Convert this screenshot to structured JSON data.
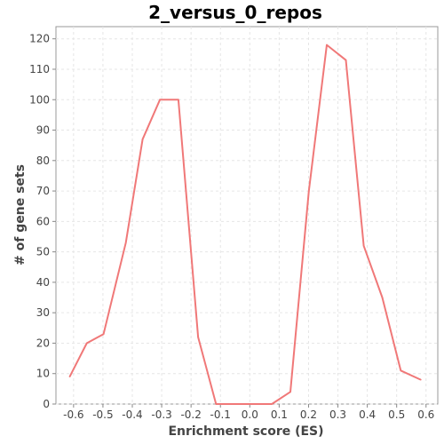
{
  "chart_data": {
    "type": "line",
    "title": "2_versus_0_repos",
    "xlabel": "Enrichment score (ES)",
    "ylabel": "# of gene sets",
    "xlim": [
      -0.66,
      0.64
    ],
    "ylim": [
      0,
      124
    ],
    "xticks": [
      "-0.6",
      "-0.5",
      "-0.4",
      "-0.3",
      "-0.2",
      "-0.1",
      "0.0",
      "0.1",
      "0.2",
      "0.3",
      "0.4",
      "0.5",
      "0.6"
    ],
    "yticks": [
      "0",
      "10",
      "20",
      "30",
      "40",
      "50",
      "60",
      "70",
      "80",
      "90",
      "100",
      "110",
      "120"
    ],
    "grid": true,
    "legend": "none",
    "series": [
      {
        "color": "#f07878",
        "x": [
          -0.613,
          -0.555,
          -0.498,
          -0.422,
          -0.365,
          -0.306,
          -0.243,
          -0.176,
          -0.115,
          -0.054,
          0.006,
          0.075,
          0.138,
          0.201,
          0.262,
          0.327,
          0.388,
          0.451,
          0.514,
          0.582
        ],
        "y": [
          9,
          20,
          23,
          53,
          87,
          100,
          100,
          22,
          0,
          0,
          0,
          0,
          4,
          70,
          118,
          113,
          52,
          35,
          11,
          8
        ]
      }
    ]
  }
}
